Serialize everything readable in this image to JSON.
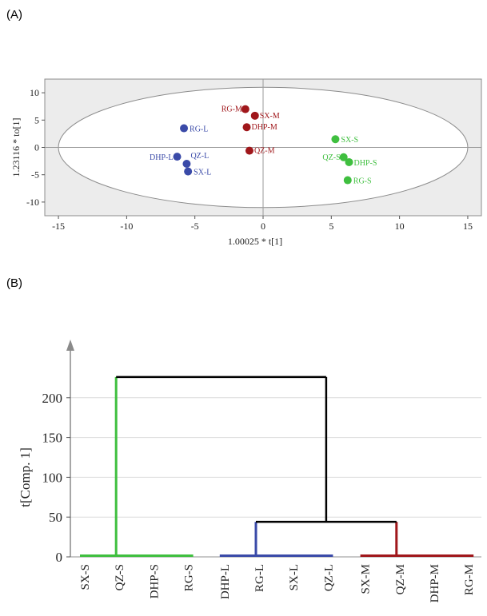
{
  "panel_a": {
    "label": "(A)"
  },
  "panel_b": {
    "label": "(B)"
  },
  "chart_data": [
    {
      "type": "scatter",
      "xlabel": "1.00025 * t[1]",
      "ylabel": "1.23116 * to[1]",
      "xlim": [
        -16,
        16
      ],
      "ylim": [
        -12.5,
        12.5
      ],
      "xticks": [
        -15,
        -10,
        -5,
        0,
        5,
        10,
        15
      ],
      "yticks": [
        10,
        5,
        0,
        -5,
        -10
      ],
      "ellipse": {
        "rx": 15,
        "ry": 11
      },
      "colors": {
        "L": "#3a4aa8",
        "M": "#a0171b",
        "S": "#3fbf3f"
      },
      "points": [
        {
          "label": "RG-M",
          "x": -1.3,
          "y": 7.0,
          "group": "M"
        },
        {
          "label": "SX-M",
          "x": -0.6,
          "y": 5.8,
          "group": "M"
        },
        {
          "label": "DHP-M",
          "x": -1.2,
          "y": 3.7,
          "group": "M"
        },
        {
          "label": "QZ-M",
          "x": -1.0,
          "y": -0.6,
          "group": "M"
        },
        {
          "label": "RG-L",
          "x": -5.8,
          "y": 3.5,
          "group": "L"
        },
        {
          "label": "DHP-L",
          "x": -6.3,
          "y": -1.7,
          "group": "L"
        },
        {
          "label": "QZ-L",
          "x": -5.6,
          "y": -3.0,
          "group": "L"
        },
        {
          "label": "SX-L",
          "x": -5.5,
          "y": -4.4,
          "group": "L"
        },
        {
          "label": "SX-S",
          "x": 5.3,
          "y": 1.5,
          "group": "S"
        },
        {
          "label": "QZ-S",
          "x": 5.9,
          "y": -1.8,
          "group": "S"
        },
        {
          "label": "DHP-S",
          "x": 6.3,
          "y": -2.7,
          "group": "S"
        },
        {
          "label": "RG-S",
          "x": 6.2,
          "y": -6.0,
          "group": "S"
        }
      ]
    },
    {
      "type": "dendrogram",
      "ylabel": "t[Comp. 1]",
      "ylim": [
        0,
        250
      ],
      "yticks": [
        0,
        50,
        100,
        150,
        200
      ],
      "leaves": [
        "SX-S",
        "QZ-S",
        "DHP-S",
        "RG-S",
        "DHP-L",
        "RG-L",
        "SX-L",
        "QZ-L",
        "SX-M",
        "QZ-M",
        "DHP-M",
        "RG-M"
      ],
      "clusters": [
        {
          "name": "S",
          "color": "#3fbf3f",
          "leaves": [
            0,
            3
          ],
          "merge_height": 1.5,
          "stem_leaf": 1
        },
        {
          "name": "L",
          "color": "#3a4aa8",
          "leaves": [
            4,
            7
          ],
          "merge_height": 1.5,
          "stem_leaf": 5
        },
        {
          "name": "M",
          "color": "#a0171b",
          "leaves": [
            8,
            11
          ],
          "merge_height": 1.5,
          "stem_leaf": 9
        }
      ],
      "merges": [
        {
          "between": [
            "L",
            "M"
          ],
          "height": 44
        },
        {
          "between": [
            "S",
            "LM"
          ],
          "height": 226
        }
      ]
    }
  ]
}
